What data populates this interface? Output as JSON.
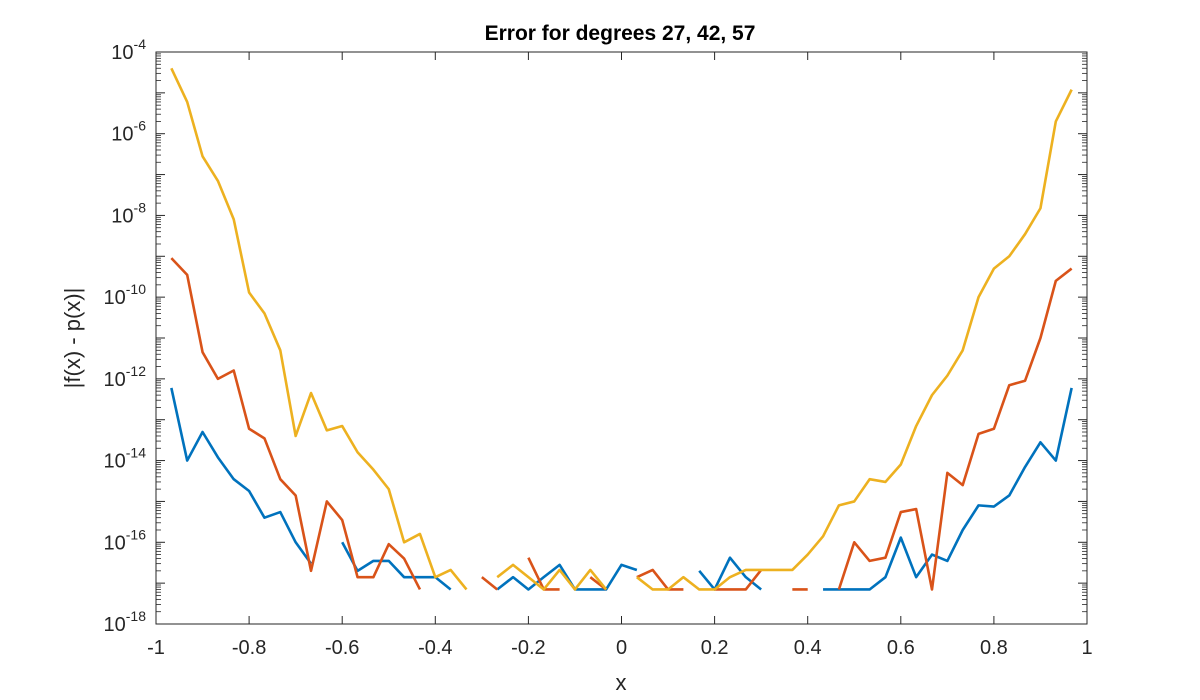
{
  "chart_data": {
    "type": "line",
    "title": "Error for degrees 27, 42, 57",
    "xlabel": "x",
    "ylabel": "|f(x) - p(x)|",
    "xlim": [
      -1,
      1
    ],
    "ylim": [
      1e-18,
      0.0001
    ],
    "yscale": "log",
    "grid": false,
    "legend": "none",
    "x_ticks": [
      -1,
      -0.8,
      -0.6,
      -0.4,
      -0.2,
      0,
      0.2,
      0.4,
      0.6,
      0.8,
      1
    ],
    "x_tick_labels": [
      "-1",
      "-0.8",
      "-0.6",
      "-0.4",
      "-0.2",
      "0",
      "0.2",
      "0.4",
      "0.6",
      "0.8",
      "1"
    ],
    "y_ticks": [
      {
        "value": 1e-18,
        "base": "10",
        "exp": "-18"
      },
      {
        "value": 1e-16,
        "base": "10",
        "exp": "-16"
      },
      {
        "value": 1e-14,
        "base": "10",
        "exp": "-14"
      },
      {
        "value": 1e-12,
        "base": "10",
        "exp": "-12"
      },
      {
        "value": 1e-10,
        "base": "10",
        "exp": "-10"
      },
      {
        "value": 1e-08,
        "base": "10",
        "exp": "-8"
      },
      {
        "value": 1e-06,
        "base": "10",
        "exp": "-6"
      },
      {
        "value": 0.0001,
        "base": "10",
        "exp": "-4"
      }
    ],
    "series": [
      {
        "color": "#0072BD",
        "x": [
          -0.967,
          -0.933,
          -0.9,
          -0.867,
          -0.833,
          -0.8,
          -0.767,
          -0.733,
          -0.7,
          -0.667,
          -0.633,
          -0.6,
          -0.567,
          -0.533,
          -0.5,
          -0.467,
          -0.433,
          -0.4,
          -0.367,
          -0.333,
          -0.3,
          -0.267,
          -0.233,
          -0.2,
          -0.167,
          -0.133,
          -0.1,
          -0.067,
          -0.033,
          0,
          0.033,
          0.067,
          0.1,
          0.133,
          0.167,
          0.2,
          0.233,
          0.267,
          0.3,
          0.333,
          0.367,
          0.4,
          0.433,
          0.467,
          0.5,
          0.533,
          0.567,
          0.6,
          0.633,
          0.667,
          0.7,
          0.733,
          0.767,
          0.8,
          0.833,
          0.867,
          0.9,
          0.933,
          0.967
        ],
        "y": [
          6e-13,
          1e-14,
          5e-14,
          1.2e-14,
          3.5e-15,
          1.8e-15,
          4e-16,
          5.5e-16,
          1e-16,
          3e-17,
          null,
          1e-16,
          2e-17,
          3.5e-17,
          3.5e-17,
          1.4e-17,
          1.4e-17,
          1.4e-17,
          7e-18,
          null,
          null,
          7e-18,
          1.4e-17,
          7e-18,
          1.4e-17,
          2.8e-17,
          7e-18,
          7e-18,
          7e-18,
          2.8e-17,
          2.1e-17,
          null,
          null,
          null,
          2e-17,
          7e-18,
          4.2e-17,
          1.4e-17,
          7e-18,
          null,
          null,
          null,
          7e-18,
          7e-18,
          7e-18,
          7e-18,
          1.4e-17,
          1.3e-16,
          1.4e-17,
          5e-17,
          3.5e-17,
          2e-16,
          8e-16,
          7.5e-16,
          1.4e-15,
          7e-15,
          2.8e-14,
          1e-14,
          6e-13
        ]
      },
      {
        "color": "#D95319",
        "x": [
          -0.967,
          -0.933,
          -0.9,
          -0.867,
          -0.833,
          -0.8,
          -0.767,
          -0.733,
          -0.7,
          -0.667,
          -0.633,
          -0.6,
          -0.567,
          -0.533,
          -0.5,
          -0.467,
          -0.433,
          -0.4,
          -0.367,
          -0.333,
          -0.3,
          -0.267,
          -0.233,
          -0.2,
          -0.167,
          -0.133,
          -0.1,
          -0.067,
          -0.033,
          0,
          0.033,
          0.067,
          0.1,
          0.133,
          0.167,
          0.2,
          0.233,
          0.267,
          0.3,
          0.333,
          0.367,
          0.4,
          0.433,
          0.467,
          0.5,
          0.533,
          0.567,
          0.6,
          0.633,
          0.667,
          0.7,
          0.733,
          0.767,
          0.8,
          0.833,
          0.867,
          0.9,
          0.933,
          0.967
        ],
        "y": [
          9e-10,
          3.5e-10,
          4.5e-12,
          1e-12,
          1.6e-12,
          6e-14,
          3.5e-14,
          3.5e-15,
          1.4e-15,
          2e-17,
          1e-15,
          3.5e-16,
          1.4e-17,
          1.4e-17,
          9e-17,
          4e-17,
          7e-18,
          null,
          null,
          null,
          1.4e-17,
          7e-18,
          null,
          4.2e-17,
          7e-18,
          7e-18,
          null,
          1.4e-17,
          7e-18,
          null,
          1.4e-17,
          2.1e-17,
          7e-18,
          7e-18,
          null,
          7e-18,
          7e-18,
          7e-18,
          2.1e-17,
          null,
          7e-18,
          7e-18,
          null,
          7e-18,
          1e-16,
          3.5e-17,
          4.2e-17,
          5.5e-16,
          6.5e-16,
          7e-18,
          5e-15,
          2.5e-15,
          4.5e-14,
          6e-14,
          7e-13,
          9e-13,
          1e-11,
          2.5e-10,
          5e-10
        ]
      },
      {
        "color": "#EDB120",
        "x": [
          -0.967,
          -0.933,
          -0.9,
          -0.867,
          -0.833,
          -0.8,
          -0.767,
          -0.733,
          -0.7,
          -0.667,
          -0.633,
          -0.6,
          -0.567,
          -0.533,
          -0.5,
          -0.467,
          -0.433,
          -0.4,
          -0.367,
          -0.333,
          -0.3,
          -0.267,
          -0.233,
          -0.2,
          -0.167,
          -0.133,
          -0.1,
          -0.067,
          -0.033,
          0,
          0.033,
          0.067,
          0.1,
          0.133,
          0.167,
          0.2,
          0.233,
          0.267,
          0.3,
          0.333,
          0.367,
          0.4,
          0.433,
          0.467,
          0.5,
          0.533,
          0.567,
          0.6,
          0.633,
          0.667,
          0.7,
          0.733,
          0.767,
          0.8,
          0.833,
          0.867,
          0.9,
          0.933,
          0.967
        ],
        "y": [
          4e-05,
          6e-06,
          2.8e-07,
          7e-08,
          8e-09,
          1.3e-10,
          4e-11,
          5e-12,
          4e-14,
          4.5e-13,
          5.5e-14,
          7e-14,
          1.6e-14,
          6e-15,
          2e-15,
          1e-16,
          1.6e-16,
          1.4e-17,
          2.1e-17,
          7e-18,
          null,
          1.4e-17,
          2.8e-17,
          1.4e-17,
          7e-18,
          2.1e-17,
          7e-18,
          2.1e-17,
          7e-18,
          null,
          1.4e-17,
          7e-18,
          7e-18,
          1.4e-17,
          7e-18,
          7e-18,
          1.4e-17,
          2.1e-17,
          2.1e-17,
          2.1e-17,
          2.1e-17,
          5e-17,
          1.4e-16,
          8e-16,
          1e-15,
          3.5e-15,
          3e-15,
          8e-15,
          7e-14,
          4e-13,
          1.2e-12,
          5e-12,
          1e-10,
          5e-10,
          1e-09,
          3.5e-09,
          1.5e-08,
          2e-06,
          1.2e-05
        ]
      }
    ]
  }
}
